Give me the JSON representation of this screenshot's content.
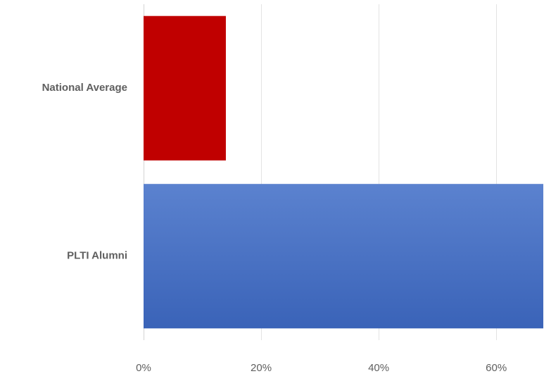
{
  "chart_data": {
    "type": "bar",
    "orientation": "horizontal",
    "categories": [
      "National Average",
      "PLTI Alumni"
    ],
    "values": [
      14,
      68
    ],
    "value_unit": "%",
    "colors": [
      "#c00000",
      "#4472c4"
    ],
    "xlim": [
      0,
      68
    ],
    "xticks": [
      0,
      20,
      40,
      60
    ],
    "tick_labels": [
      "0%",
      "20%",
      "40%",
      "60%"
    ],
    "title": "",
    "xlabel": "",
    "ylabel": "",
    "grid": "vertical",
    "legend": "none"
  }
}
